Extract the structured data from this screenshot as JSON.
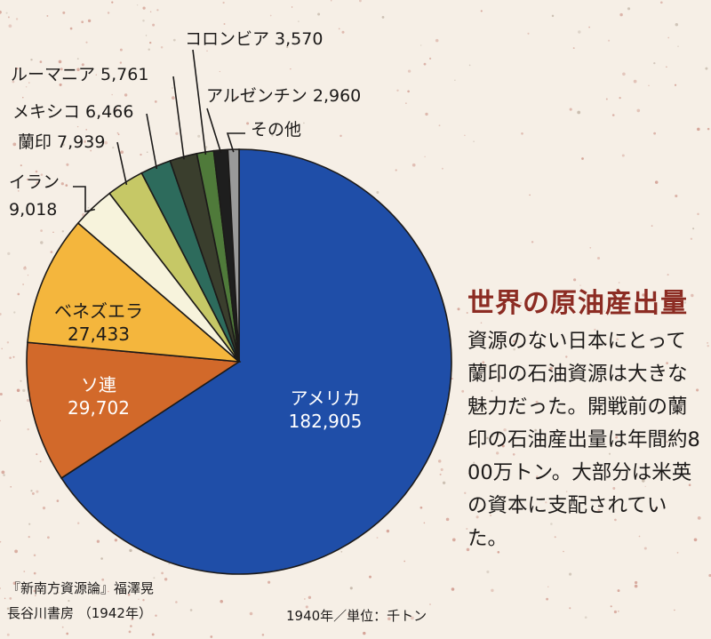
{
  "chart_data": {
    "type": "pie",
    "labels": [
      "アメリカ",
      "ソ連",
      "ベネズエラ",
      "イラン",
      "蘭印",
      "メキシコ",
      "ルーマニア",
      "コロンビア",
      "アルゼンチン",
      "その他"
    ],
    "values": [
      182905,
      29702,
      27433,
      9018,
      7939,
      6466,
      5761,
      3570,
      2960,
      null
    ],
    "value_labels": [
      "182,905",
      "29,702",
      "27,433",
      "9,018",
      "7,939",
      "6,466",
      "5,761",
      "3,570",
      "2,960",
      ""
    ],
    "colors": [
      "#1f4ea8",
      "#d2692a",
      "#f4b63d",
      "#f7f3dc",
      "#c6c866",
      "#2d6b5c",
      "#3a3e2d",
      "#4f7a3a",
      "#1e1e1e",
      "#9a9a9a"
    ]
  },
  "side": {
    "title": "世界の原油産出量",
    "body": "資源のない日本にとって蘭印の石油資源は大きな魅力だった。開戦前の蘭印の石油産出量は年間約800万トン。大部分は米英の資本に支配されていた。"
  },
  "source": {
    "line1": "『新南方資源論』福澤晃",
    "line2": "長谷川書房 （1942年）"
  },
  "unit_note": "1940年／単位：千トン"
}
